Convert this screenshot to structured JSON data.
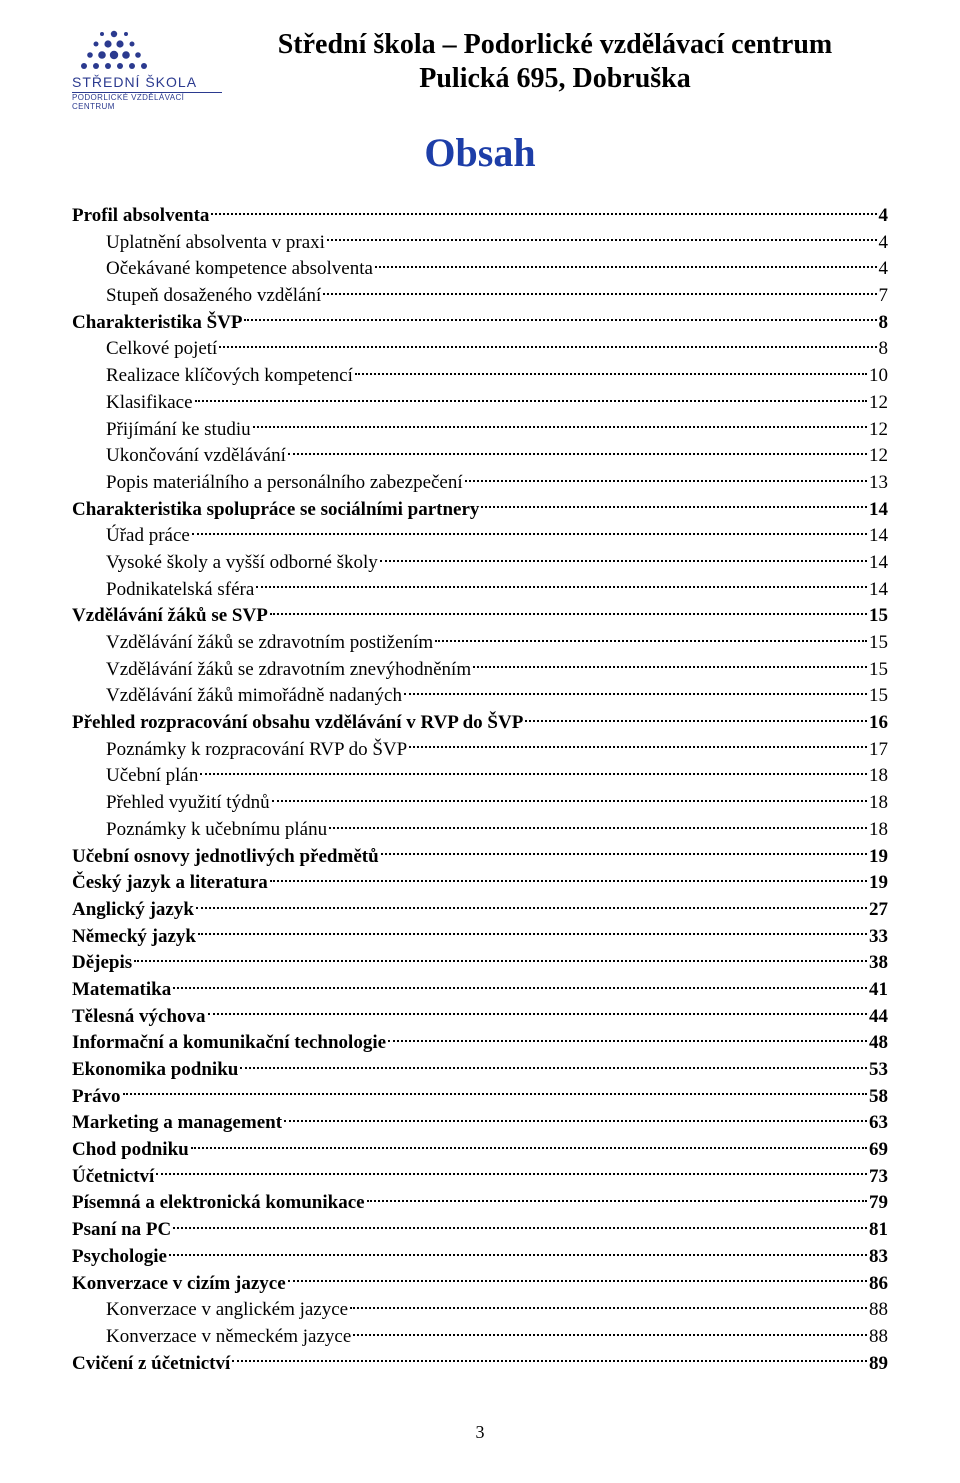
{
  "header": {
    "line1": "Střední škola – Podorlické vzdělávací centrum",
    "line2": "Pulická 695, Dobruška",
    "logo_label1": "STŘEDNÍ ŠKOLA",
    "logo_label2": "PODORLICKÉ VZDĚLÁVACÍ CENTRUM"
  },
  "title": "Obsah",
  "page_number": "3",
  "colors": {
    "title_color": "#1d3ea8",
    "logo_color": "#2b3a8f",
    "text_color": "#000000",
    "bg_color": "#ffffff"
  },
  "typography": {
    "header_fontsize_pt": 21,
    "title_fontsize_pt": 30,
    "toc_fontsize_pt": 14,
    "pagenum_fontsize_pt": 13,
    "font_family": "Times New Roman"
  },
  "toc": [
    {
      "label": "Profil absolventa",
      "page": "4",
      "bold": true,
      "indent": 0
    },
    {
      "label": "Uplatnění absolventa v praxi",
      "page": "4",
      "bold": false,
      "indent": 1
    },
    {
      "label": "Očekávané kompetence absolventa",
      "page": "4",
      "bold": false,
      "indent": 1
    },
    {
      "label": "Stupeň dosaženého vzdělání",
      "page": "7",
      "bold": false,
      "indent": 1
    },
    {
      "label": "Charakteristika ŠVP",
      "page": "8",
      "bold": true,
      "indent": 0
    },
    {
      "label": "Celkové pojetí",
      "page": "8",
      "bold": false,
      "indent": 1
    },
    {
      "label": "Realizace klíčových kompetencí",
      "page": "10",
      "bold": false,
      "indent": 1
    },
    {
      "label": "Klasifikace",
      "page": "12",
      "bold": false,
      "indent": 1
    },
    {
      "label": "Přijímání ke studiu",
      "page": "12",
      "bold": false,
      "indent": 1
    },
    {
      "label": "Ukončování vzdělávání",
      "page": "12",
      "bold": false,
      "indent": 1
    },
    {
      "label": "Popis materiálního a personálního zabezpečení",
      "page": "13",
      "bold": false,
      "indent": 1
    },
    {
      "label": "Charakteristika spolupráce se sociálními partnery",
      "page": "14",
      "bold": true,
      "indent": 0
    },
    {
      "label": "Úřad práce",
      "page": "14",
      "bold": false,
      "indent": 1
    },
    {
      "label": "Vysoké školy a vyšší odborné školy",
      "page": "14",
      "bold": false,
      "indent": 1
    },
    {
      "label": "Podnikatelská sféra",
      "page": "14",
      "bold": false,
      "indent": 1
    },
    {
      "label": "Vzdělávání žáků se SVP",
      "page": "15",
      "bold": true,
      "indent": 0
    },
    {
      "label": "Vzdělávání žáků se zdravotním postižením",
      "page": "15",
      "bold": false,
      "indent": 1
    },
    {
      "label": "Vzdělávání žáků se zdravotním znevýhodněním",
      "page": "15",
      "bold": false,
      "indent": 1
    },
    {
      "label": "Vzdělávání žáků mimořádně nadaných",
      "page": "15",
      "bold": false,
      "indent": 1
    },
    {
      "label": "Přehled rozpracování obsahu vzdělávání v RVP do ŠVP",
      "page": "16",
      "bold": true,
      "indent": 0
    },
    {
      "label": "Poznámky k rozpracování RVP do ŠVP",
      "page": "17",
      "bold": false,
      "indent": 1
    },
    {
      "label": "Učební plán",
      "page": "18",
      "bold": false,
      "indent": 1
    },
    {
      "label": "Přehled využití týdnů",
      "page": "18",
      "bold": false,
      "indent": 1
    },
    {
      "label": "Poznámky k učebnímu plánu",
      "page": "18",
      "bold": false,
      "indent": 1
    },
    {
      "label": "Učební osnovy jednotlivých předmětů",
      "page": "19",
      "bold": true,
      "indent": 0
    },
    {
      "label": "Český jazyk a literatura",
      "page": "19",
      "bold": true,
      "indent": 0
    },
    {
      "label": "Anglický jazyk",
      "page": "27",
      "bold": true,
      "indent": 0
    },
    {
      "label": "Německý jazyk",
      "page": "33",
      "bold": true,
      "indent": 0
    },
    {
      "label": "Dějepis",
      "page": "38",
      "bold": true,
      "indent": 0
    },
    {
      "label": "Matematika",
      "page": "41",
      "bold": true,
      "indent": 0
    },
    {
      "label": "Tělesná výchova",
      "page": "44",
      "bold": true,
      "indent": 0
    },
    {
      "label": "Informační a komunikační technologie",
      "page": "48",
      "bold": true,
      "indent": 0
    },
    {
      "label": "Ekonomika podniku",
      "page": "53",
      "bold": true,
      "indent": 0
    },
    {
      "label": "Právo",
      "page": "58",
      "bold": true,
      "indent": 0
    },
    {
      "label": "Marketing a management",
      "page": "63",
      "bold": true,
      "indent": 0
    },
    {
      "label": "Chod podniku",
      "page": "69",
      "bold": true,
      "indent": 0
    },
    {
      "label": "Účetnictví",
      "page": "73",
      "bold": true,
      "indent": 0
    },
    {
      "label": "Písemná a elektronická komunikace",
      "page": "79",
      "bold": true,
      "indent": 0
    },
    {
      "label": "Psaní na PC",
      "page": "81",
      "bold": true,
      "indent": 0
    },
    {
      "label": "Psychologie",
      "page": "83",
      "bold": true,
      "indent": 0
    },
    {
      "label": "Konverzace v cizím jazyce",
      "page": "86",
      "bold": true,
      "indent": 0
    },
    {
      "label": "Konverzace v anglickém jazyce",
      "page": "88",
      "bold": false,
      "indent": 1
    },
    {
      "label": "Konverzace v německém jazyce",
      "page": "88",
      "bold": false,
      "indent": 1
    },
    {
      "label": "Cvičení z účetnictví",
      "page": "89",
      "bold": true,
      "indent": 0
    }
  ]
}
